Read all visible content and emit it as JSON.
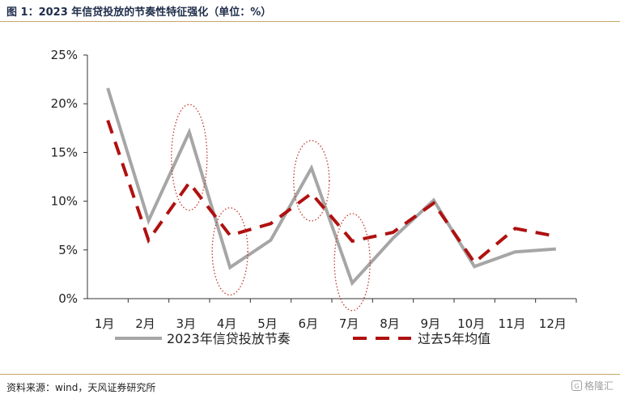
{
  "header": {
    "title": "图 1：2023 年信贷投放的节奏性特征强化（单位：%）"
  },
  "footer": {
    "source": "资料来源：wind，天风证券研究所",
    "watermark": "格隆汇"
  },
  "colors": {
    "series_2023": "#a6a6a6",
    "series_avg": "#b01010",
    "circle": "#c0392b",
    "accent_rule": "#c9a86a"
  },
  "chart_data": {
    "type": "line",
    "categories": [
      "1月",
      "2月",
      "3月",
      "4月",
      "5月",
      "6月",
      "7月",
      "8月",
      "9月",
      "10月",
      "11月",
      "12月"
    ],
    "ylim": [
      0,
      25
    ],
    "yticks": [
      "0%",
      "5%",
      "10%",
      "15%",
      "20%",
      "25%"
    ],
    "series": [
      {
        "name": "2023年信贷投放节奏",
        "values": [
          21.6,
          8.0,
          17.1,
          3.2,
          6.0,
          13.4,
          1.6,
          6.2,
          10.1,
          3.3,
          4.8,
          5.1
        ],
        "style": "solid"
      },
      {
        "name": "过去5年均值",
        "values": [
          18.3,
          6.0,
          11.9,
          6.5,
          7.7,
          10.8,
          5.9,
          6.8,
          9.8,
          3.7,
          7.2,
          6.4
        ],
        "style": "dashed"
      }
    ],
    "highlighted_categories": [
      "3月",
      "4月",
      "6月",
      "7月"
    ],
    "legend_position": "bottom",
    "grid": false
  }
}
